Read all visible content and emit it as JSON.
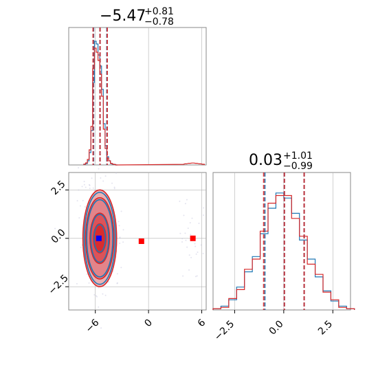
{
  "titles": {
    "p1": {
      "median": "−5.47",
      "plus": "+0.81",
      "minus": "−0.78"
    },
    "p2": {
      "median": "0.03",
      "plus": "+1.01",
      "minus": "−0.99"
    }
  },
  "colors": {
    "series_a": "#1f77b4",
    "series_b": "#d62728",
    "grid": "#b0b0b0",
    "marker_a": "#0000ff",
    "marker_b": "#ff0000"
  },
  "chart_data": [
    {
      "type": "histogram",
      "panel": "marginal-p1",
      "xlim": [
        -9,
        6.5
      ],
      "quantile_lines": {
        "series_a": [
          -6.2,
          -5.47,
          -4.7
        ],
        "series_b": [
          -6.25,
          -5.47,
          -4.66
        ]
      },
      "series": [
        {
          "color_key": "series_a",
          "x": [
            -7.2,
            -7.0,
            -6.8,
            -6.6,
            -6.4,
            -6.2,
            -6.0,
            -5.8,
            -5.6,
            -5.4,
            -5.2,
            -5.0,
            -4.8,
            -4.6,
            -4.4,
            -4.2,
            -4.0,
            -3.8,
            -3.6
          ],
          "y": [
            0.5,
            1,
            3,
            9,
            25,
            60,
            90,
            88,
            80,
            72,
            55,
            30,
            14,
            6,
            3,
            1,
            0.5,
            0.3,
            0
          ]
        },
        {
          "color_key": "series_b",
          "x": [
            -7.2,
            -7.0,
            -6.8,
            -6.6,
            -6.4,
            -6.2,
            -6.0,
            -5.8,
            -5.6,
            -5.4,
            -5.2,
            -5.0,
            -4.8,
            -4.6,
            -4.4,
            -4.2,
            -4.0,
            -3.8,
            -3.6,
            3.8,
            4.2,
            4.6,
            5.0,
            5.4,
            5.8,
            6.2
          ],
          "y": [
            0.6,
            1.5,
            4,
            11,
            28,
            70,
            85,
            82,
            76,
            66,
            50,
            26,
            12,
            5,
            3,
            1.2,
            0.6,
            0.3,
            0,
            0.4,
            0.8,
            1.2,
            1.4,
            1.2,
            0.8,
            0.5
          ]
        }
      ]
    },
    {
      "type": "histogram",
      "panel": "marginal-p2",
      "xticks": [
        "−2.5",
        "0.0",
        "2.5"
      ],
      "xlim": [
        -3.6,
        3.4
      ],
      "quantile_lines": {
        "series_a": [
          -0.96,
          0.03,
          1.04
        ],
        "series_b": [
          -1.02,
          0.03,
          1.04
        ]
      },
      "series": [
        {
          "color_key": "series_a",
          "x": [
            -3.4,
            -3.0,
            -2.6,
            -2.2,
            -1.8,
            -1.4,
            -1.0,
            -0.6,
            -0.2,
            0.2,
            0.6,
            1.0,
            1.4,
            1.8,
            2.2,
            2.6,
            3.0,
            3.4
          ],
          "y": [
            1,
            3,
            8,
            18,
            30,
            42,
            60,
            80,
            92,
            88,
            76,
            55,
            40,
            26,
            15,
            7,
            3,
            1
          ]
        },
        {
          "color_key": "series_b",
          "x": [
            -3.4,
            -3.0,
            -2.6,
            -2.2,
            -1.8,
            -1.4,
            -1.0,
            -0.6,
            -0.2,
            0.2,
            0.6,
            1.0,
            1.4,
            1.8,
            2.2,
            2.6,
            3.0,
            3.4
          ],
          "y": [
            1,
            2,
            9,
            16,
            32,
            40,
            62,
            84,
            90,
            90,
            72,
            58,
            36,
            28,
            14,
            8,
            2,
            1
          ]
        }
      ]
    },
    {
      "type": "scatter",
      "panel": "joint-p1-p2",
      "xticks": [
        "−6",
        "0",
        "6"
      ],
      "yticks": [
        "2.5",
        "0.0",
        "−2.5"
      ],
      "xlim": [
        -9,
        6.5
      ],
      "ylim": [
        -3.7,
        3.4
      ],
      "contours": {
        "series_a_center": [
          -5.5,
          0.0
        ],
        "series_b_center": [
          -5.5,
          0.0
        ],
        "levels_sigma_x": [
          0.7,
          1.1,
          1.6,
          1.9
        ],
        "levels_sigma_y": [
          0.75,
          1.3,
          2.1,
          2.5
        ]
      },
      "markers": [
        {
          "color_key": "marker_a",
          "x": -5.6,
          "y": 0.0
        },
        {
          "color_key": "marker_b",
          "x": -0.8,
          "y": -0.15
        },
        {
          "color_key": "marker_b",
          "x": 5.0,
          "y": 0.0
        }
      ]
    }
  ]
}
